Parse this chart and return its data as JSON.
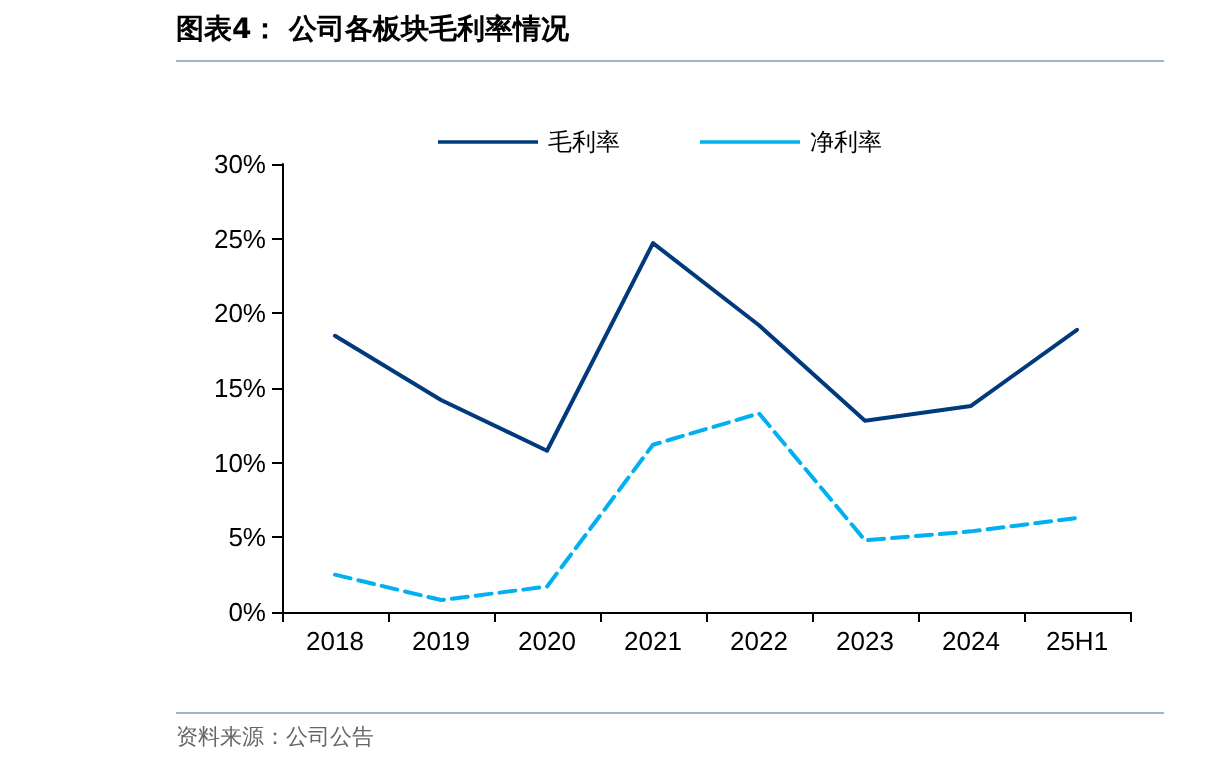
{
  "chart_data": {
    "type": "line",
    "title": "图表4：  公司各板块毛利率情况",
    "categories": [
      "2018",
      "2019",
      "2020",
      "2021",
      "2022",
      "2023",
      "2024",
      "25H1"
    ],
    "series": [
      {
        "name": "毛利率",
        "color": "#003a7d",
        "values": [
          18.5,
          14.2,
          10.8,
          24.7,
          19.2,
          12.8,
          13.8,
          18.9
        ],
        "line_style": "solid"
      },
      {
        "name": "净利率",
        "color": "#00b0f0",
        "values": [
          2.5,
          0.8,
          1.7,
          11.2,
          13.3,
          4.8,
          5.4,
          6.3
        ],
        "line_style": "dashed"
      }
    ],
    "ylim": [
      0,
      30
    ],
    "yticks": [
      {
        "value": 0,
        "label": "0%"
      },
      {
        "value": 5,
        "label": "5%"
      },
      {
        "value": 10,
        "label": "10%"
      },
      {
        "value": 15,
        "label": "15%"
      },
      {
        "value": 20,
        "label": "20%"
      },
      {
        "value": 25,
        "label": "25%"
      },
      {
        "value": 30,
        "label": "30%"
      }
    ],
    "grid": false,
    "legend": "top",
    "marker": "none",
    "annotations": [
      "资料来源：公司公告"
    ]
  }
}
